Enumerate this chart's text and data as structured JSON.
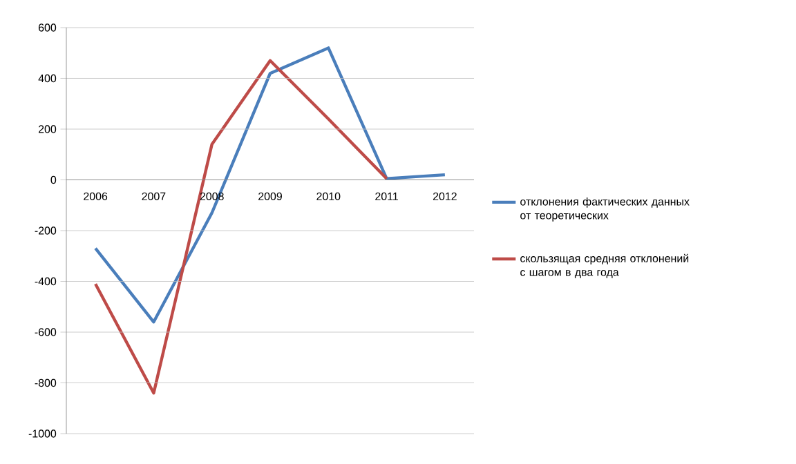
{
  "chart_data": {
    "type": "line",
    "categories": [
      "2006",
      "2007",
      "2008",
      "2009",
      "2010",
      "2011",
      "2012"
    ],
    "series": [
      {
        "name": "отклонения фактических данных от теоретических",
        "color": "#4a7ebb",
        "values": [
          -270,
          -560,
          -130,
          420,
          520,
          5,
          20
        ]
      },
      {
        "name": "скользящая средняя отклонений с шагом в два года",
        "color": "#be4b48",
        "values": [
          -410,
          -840,
          140,
          470,
          240,
          5,
          null
        ]
      }
    ],
    "ylim": [
      -1000,
      600
    ],
    "yticks": [
      -1000,
      -800,
      -600,
      -400,
      -200,
      0,
      200,
      400,
      600
    ],
    "grid": "y",
    "legend": "right",
    "marker": "none",
    "line_style": "solid"
  }
}
